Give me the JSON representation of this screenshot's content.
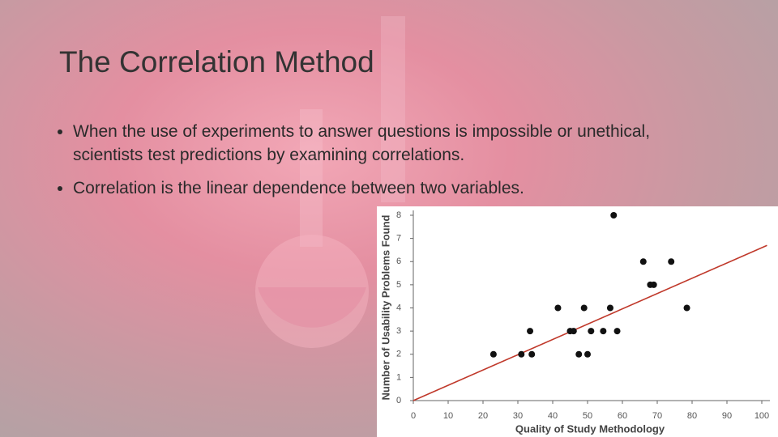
{
  "title": "The Correlation Method",
  "bullets": [
    "When the use of experiments to answer questions is impossible or unethical, scientists test predictions by examining correlations.",
    "Correlation is the linear dependence between two variables."
  ],
  "chart_data": {
    "type": "scatter",
    "x_label": "Quality of Study Methodology",
    "y_label": "Number of Usability Problems Found",
    "x": [
      23,
      31,
      33.5,
      34,
      41.5,
      45,
      46,
      47.5,
      49,
      50,
      51,
      54.5,
      56.5,
      57.5,
      58.5,
      66,
      68,
      69,
      74,
      78.5
    ],
    "values": [
      2,
      2,
      3,
      2,
      4,
      3,
      3,
      2,
      4,
      2,
      3,
      3,
      4,
      8,
      3,
      6,
      5,
      5,
      6,
      4
    ],
    "color": "#111111",
    "trendline": {
      "x": [
        0,
        101.5
      ],
      "y": [
        0,
        6.7
      ],
      "color": "#c0392b"
    },
    "xlim": [
      0,
      100
    ],
    "xticks": [
      0,
      10,
      20,
      30,
      40,
      50,
      60,
      70,
      80,
      90,
      100
    ],
    "ylim": [
      0,
      8
    ],
    "yticks": [
      0,
      1,
      2,
      3,
      4,
      5,
      6,
      7,
      8
    ]
  }
}
